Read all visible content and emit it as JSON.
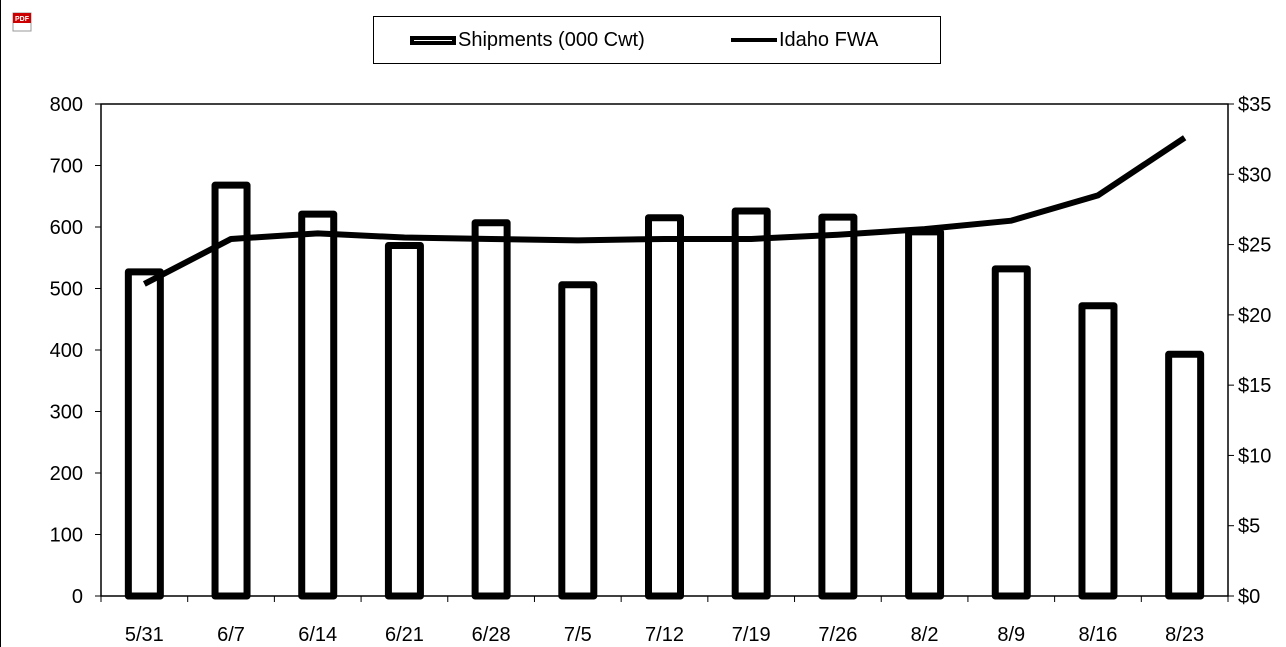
{
  "toolbar": {
    "pdf_icon_text": "PDF"
  },
  "legend": [
    {
      "label": "Shipments (000 Cwt)",
      "type": "bar"
    },
    {
      "label": "Idaho FWA",
      "type": "line"
    }
  ],
  "chart_data": {
    "type": "bar",
    "categories": [
      "5/31",
      "6/7",
      "6/14",
      "6/21",
      "6/28",
      "7/5",
      "7/12",
      "7/19",
      "7/26",
      "8/2",
      "8/9",
      "8/16",
      "8/23"
    ],
    "series": [
      {
        "name": "Shipments (000 Cwt)",
        "type": "bar",
        "axis": "left",
        "values": [
          527,
          668,
          621,
          570,
          607,
          506,
          615,
          626,
          616,
          592,
          532,
          472,
          393
        ]
      },
      {
        "name": "Idaho FWA",
        "type": "line",
        "axis": "right",
        "values": [
          22.2,
          25.4,
          25.8,
          25.5,
          25.4,
          25.3,
          25.4,
          25.4,
          25.7,
          26.1,
          26.7,
          28.5,
          32.6
        ]
      }
    ],
    "y_left": {
      "lim": [
        0,
        800
      ],
      "ticks": [
        "0",
        "100",
        "200",
        "300",
        "400",
        "500",
        "600",
        "700",
        "800"
      ]
    },
    "y_right": {
      "lim": [
        0,
        35
      ],
      "ticks": [
        "$0",
        "$5",
        "$10",
        "$15",
        "$20",
        "$25",
        "$30",
        "$35"
      ]
    },
    "grid": false,
    "legend_position": "top"
  }
}
